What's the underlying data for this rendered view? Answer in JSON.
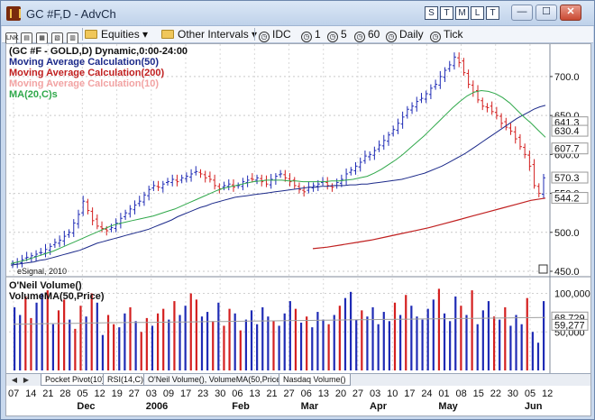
{
  "window": {
    "title": "GC #F,D - AdvCh",
    "title_buttons": [
      "S",
      "T",
      "M",
      "L",
      "T"
    ],
    "controls": {
      "minimize": "—",
      "maximize": "☐",
      "close": "✕"
    }
  },
  "toolbar": {
    "equities": "Equities",
    "other_intervals": "Other Intervals",
    "items": [
      "IDC",
      "1",
      "5",
      "60",
      "Daily",
      "Tick"
    ]
  },
  "studies": {
    "symbol_line": "(GC #F - GOLD,D) Dynamic,0:00-24:00",
    "ma50": "Moving Average Calculation(50)",
    "ma200": "Moving Average Calculation(200)",
    "ma10": "Moving Average Calculation(10)",
    "ma20": "MA(20,C)s",
    "volume_title": "O'Neil Volume()",
    "volume_ma": "VolumeMA(50,Price)",
    "esignal": "eSignal, 2010"
  },
  "price_axis": {
    "ticks": [
      "700.0",
      "650.0",
      "600.0",
      "550.0",
      "500.0",
      "450.0"
    ],
    "price_tags": [
      {
        "text": "641.3",
        "bg": "#ffffff",
        "fg": "#111111"
      },
      {
        "text": "630.4",
        "bg": "#ffffff",
        "fg": "#111111"
      },
      {
        "text": "607.7",
        "bg": "#ffffff",
        "fg": "#111111"
      },
      {
        "text": "570.3",
        "bg": "#ffffff",
        "fg": "#111111"
      },
      {
        "text": "544.2",
        "bg": "#ffffff",
        "fg": "#111111"
      }
    ]
  },
  "volume_axis": {
    "ticks": [
      "100,000",
      "50,000"
    ],
    "tags": [
      "68,729",
      "59,277"
    ]
  },
  "tabs": [
    "Pocket Pivot(10)",
    "RSI(14,C)",
    "O'Neil Volume(), VolumeMA(50,Price)",
    "Nasdaq Volume()"
  ],
  "date_axis": {
    "days": [
      "07",
      "14",
      "21",
      "28",
      "05",
      "12",
      "19",
      "27",
      "03",
      "09",
      "17",
      "23",
      "30",
      "06",
      "13",
      "21",
      "27",
      "06",
      "13",
      "20",
      "27",
      "03",
      "10",
      "17",
      "24",
      "01",
      "08",
      "15",
      "22",
      "30",
      "05",
      "12"
    ],
    "months": [
      "Dec",
      "2006",
      "Feb",
      "Mar",
      "Apr",
      "May",
      "Jun"
    ]
  },
  "colors": {
    "up": "#1f2bb5",
    "down": "#d42020",
    "ma50": "#1c2a8a",
    "ma200": "#c02020",
    "ma20": "#2fa84a",
    "ma10": "#f2a3a3",
    "volma": "#a0a0a0"
  },
  "chart_data": {
    "type": "candlestick",
    "price_ylim": [
      450,
      730
    ],
    "price_series": [
      460,
      462,
      465,
      468,
      470,
      472,
      474,
      478,
      482,
      487,
      490,
      495,
      500,
      512,
      523,
      540,
      528,
      515,
      508,
      505,
      502,
      506,
      512,
      518,
      525,
      530,
      535,
      540,
      548,
      555,
      560,
      558,
      562,
      565,
      568,
      565,
      570,
      572,
      575,
      578,
      575,
      570,
      568,
      560,
      556,
      560,
      562,
      558,
      560,
      565,
      567,
      568,
      570,
      565,
      562,
      568,
      572,
      575,
      570,
      565,
      560,
      555,
      552,
      558,
      560,
      562,
      565,
      560,
      558,
      564,
      568,
      575,
      580,
      585,
      590,
      598,
      600,
      605,
      612,
      618,
      625,
      632,
      640,
      648,
      658,
      662,
      668,
      672,
      678,
      685,
      690,
      700,
      708,
      715,
      725,
      718,
      705,
      690,
      680,
      670,
      662,
      660,
      655,
      650,
      640,
      635,
      630,
      620,
      610,
      600,
      585,
      560,
      550,
      570
    ],
    "ma50_values": [
      458,
      459,
      460,
      461,
      462,
      464,
      465,
      467,
      469,
      471,
      473,
      475,
      477,
      480,
      483,
      486,
      488,
      490,
      492,
      494,
      496,
      498,
      500,
      502,
      504,
      507,
      510,
      513,
      516,
      520,
      523,
      526,
      529,
      532,
      534,
      537,
      539,
      541,
      543,
      545,
      546,
      547,
      548,
      549,
      550,
      551,
      552,
      553,
      554,
      555,
      556,
      557,
      558,
      558,
      559,
      559,
      560,
      560,
      560,
      561,
      561,
      562,
      562,
      563,
      564,
      565,
      566,
      567,
      568,
      570,
      572,
      574,
      576,
      579,
      582,
      585,
      589,
      593,
      597,
      601,
      606,
      611,
      616,
      621,
      626,
      631,
      636,
      641,
      646,
      650,
      654,
      658,
      661,
      663
    ],
    "ma20_values": [
      460,
      462,
      464,
      467,
      470,
      473,
      476,
      480,
      484,
      488,
      492,
      496,
      500,
      504,
      508,
      511,
      513,
      515,
      517,
      519,
      521,
      524,
      527,
      530,
      534,
      538,
      542,
      546,
      550,
      554,
      557,
      559,
      561,
      563,
      565,
      566,
      567,
      567,
      567,
      566,
      566,
      565,
      565,
      565,
      565,
      566,
      566,
      567,
      568,
      570,
      572,
      576,
      581,
      587,
      593,
      600,
      608,
      616,
      624,
      633,
      642,
      651,
      660,
      668,
      675,
      680,
      682,
      681,
      678,
      673,
      666,
      657,
      648,
      640,
      631,
      622
    ],
    "ma200_values": [
      479,
      481,
      484,
      487,
      490,
      494,
      498,
      502,
      506,
      511,
      516,
      521,
      526,
      531,
      536,
      541,
      544
    ],
    "volume_ylim": [
      0,
      110000
    ],
    "volume_values": [
      82000,
      72000,
      96000,
      68000,
      88000,
      100000,
      104000,
      60000,
      78000,
      92000,
      66000,
      54000,
      84000,
      70000,
      100000,
      88000,
      46000,
      72000,
      60000,
      56000,
      74000,
      82000,
      64000,
      50000,
      68000,
      58000,
      74000,
      80000,
      66000,
      90000,
      72000,
      84000,
      100000,
      92000,
      70000,
      76000,
      64000,
      88000,
      58000,
      80000,
      74000,
      52000,
      66000,
      78000,
      60000,
      82000,
      70000,
      64000,
      58000,
      74000,
      90000,
      80000,
      62000,
      70000,
      56000,
      76000,
      66000,
      60000,
      72000,
      84000,
      94000,
      102000,
      66000,
      78000,
      70000,
      82000,
      60000,
      76000,
      64000,
      88000,
      72000,
      98000,
      84000,
      70000,
      66000,
      80000,
      92000,
      106000,
      74000,
      64000,
      96000,
      84000,
      72000,
      104000,
      60000,
      78000,
      90000,
      70000,
      66000,
      82000,
      58000,
      72000,
      60000,
      94000,
      50000,
      36000,
      90000
    ],
    "volume_ma_values": [
      60000,
      60200,
      60500,
      60800,
      61000,
      61200,
      61500,
      61800,
      62000,
      62100,
      62200,
      62400,
      62600,
      62800,
      63000,
      63200,
      63400,
      63600,
      63800,
      64000,
      64200,
      64400,
      64600,
      64800,
      65000,
      65200,
      65400,
      65600,
      65800,
      66000,
      66200,
      66400,
      66600,
      66800,
      67000,
      67200,
      67400,
      67600,
      67800,
      68000,
      68200,
      68400,
      68600,
      68729
    ]
  }
}
